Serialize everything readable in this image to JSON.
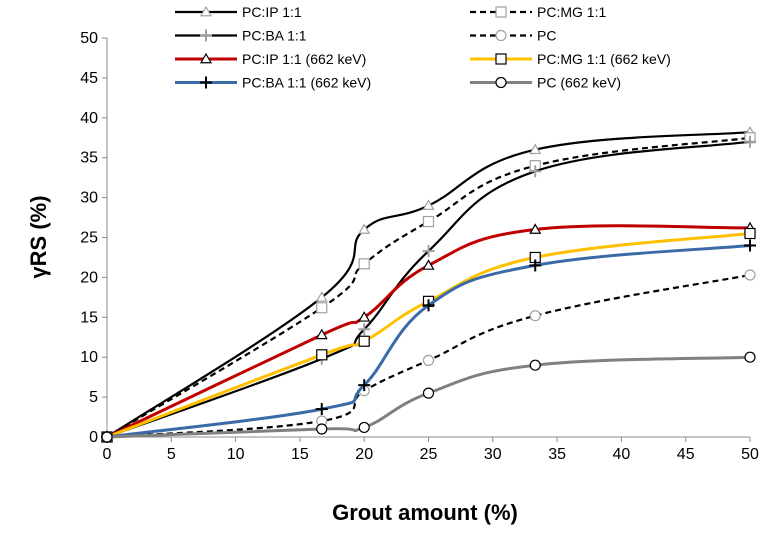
{
  "chart_data": {
    "type": "line",
    "title": "",
    "xlabel": "Grout amount (%)",
    "ylabel": "γRS (%)",
    "xlim": [
      0,
      50
    ],
    "ylim": [
      0,
      50
    ],
    "x_ticks": [
      "0",
      "5",
      "10",
      "15",
      "20",
      "25",
      "30",
      "35",
      "40",
      "45",
      "50"
    ],
    "y_ticks": [
      "0",
      "5",
      "10",
      "15",
      "20",
      "25",
      "30",
      "35",
      "40",
      "45",
      "50"
    ],
    "grid": false,
    "legend_position": "top",
    "x": [
      0,
      16.7,
      20,
      25,
      33.3,
      50
    ],
    "series": [
      {
        "name": "PC:IP 1:1",
        "values": [
          0,
          17.5,
          26,
          29,
          36,
          38.2
        ],
        "color": "#000000",
        "dash": "solid",
        "marker": "triangle",
        "marker_color": "#a0a0a0"
      },
      {
        "name": "PC:MG 1:1",
        "values": [
          0,
          16.2,
          21.7,
          27,
          34,
          37.5
        ],
        "color": "#000000",
        "dash": "dashed",
        "marker": "square",
        "marker_color": "#a0a0a0"
      },
      {
        "name": "PC:BA 1:1",
        "values": [
          0,
          9.8,
          13.5,
          23.3,
          33.3,
          37
        ],
        "color": "#000000",
        "dash": "solid",
        "marker": "plus",
        "marker_color": "#a0a0a0"
      },
      {
        "name": "PC",
        "values": [
          0,
          2,
          5.8,
          9.6,
          15.2,
          20.3
        ],
        "color": "#000000",
        "dash": "dashed",
        "marker": "circle",
        "marker_color": "#a0a0a0"
      },
      {
        "name": "PC:IP 1:1 (662 keV)",
        "values": [
          0,
          12.8,
          15,
          21.5,
          26,
          26.2
        ],
        "color": "#c00000",
        "dash": "solid",
        "marker": "triangle",
        "marker_color": "#000000"
      },
      {
        "name": "PC:MG 1:1 (662 keV)",
        "values": [
          0,
          10.3,
          12,
          17,
          22.5,
          25.5
        ],
        "color": "#ffc000",
        "dash": "solid",
        "marker": "square",
        "marker_color": "#000000"
      },
      {
        "name": "PC:BA 1:1 (662 keV)",
        "values": [
          0,
          3.5,
          6.5,
          16.5,
          21.5,
          24
        ],
        "color": "#3a6aa8",
        "dash": "solid",
        "marker": "plus",
        "marker_color": "#000000"
      },
      {
        "name": "PC (662 keV)",
        "values": [
          0,
          1,
          1.2,
          5.5,
          9,
          10
        ],
        "color": "#808080",
        "dash": "solid",
        "marker": "circle",
        "marker_color": "#000000"
      }
    ]
  }
}
